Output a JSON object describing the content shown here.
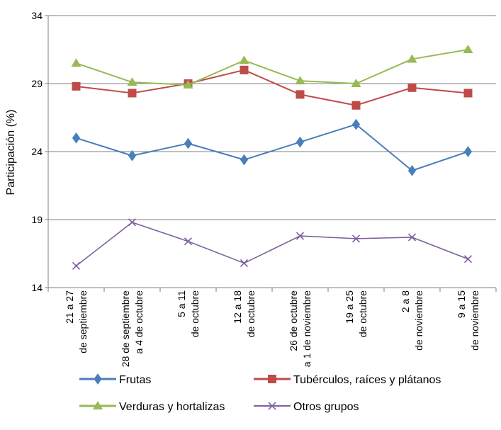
{
  "chart_data": {
    "type": "line",
    "ylabel": "Participación (%)",
    "xlabel": "",
    "ylim": [
      14,
      34
    ],
    "yticks": [
      14,
      19,
      24,
      29,
      34
    ],
    "grid": "horizontal",
    "legend_position": "bottom",
    "categories": [
      [
        "21 a 27",
        "de septiembre"
      ],
      [
        "28 de septiembre",
        "a  4 de octubre"
      ],
      [
        "5 a 11",
        "de octubre"
      ],
      [
        "12 a 18",
        "de octubre"
      ],
      [
        "26 de octubre",
        "a 1 de noviembre"
      ],
      [
        "19 a 25",
        "de octubre"
      ],
      [
        "2 a 8",
        "de noviembre"
      ],
      [
        "9 a 15",
        "de noviembre"
      ]
    ],
    "series": [
      {
        "name": "Frutas",
        "color": "#4a7ebb",
        "marker": "diamond",
        "values": [
          25.0,
          23.7,
          24.6,
          23.4,
          24.7,
          26.0,
          22.6,
          24.0
        ]
      },
      {
        "name": "Tubérculos, raíces y plátanos",
        "color": "#be4b48",
        "marker": "square",
        "values": [
          28.8,
          28.3,
          29.0,
          30.0,
          28.2,
          27.4,
          28.7,
          28.3
        ]
      },
      {
        "name": "Verduras y hortalizas",
        "color": "#98b954",
        "marker": "triangle",
        "values": [
          30.5,
          29.1,
          28.9,
          30.7,
          29.2,
          29.0,
          30.8,
          31.5
        ]
      },
      {
        "name": "Otros grupos",
        "color": "#7d60a0",
        "marker": "x",
        "values": [
          15.6,
          18.8,
          17.4,
          15.8,
          17.8,
          17.6,
          17.7,
          16.1
        ]
      }
    ]
  }
}
